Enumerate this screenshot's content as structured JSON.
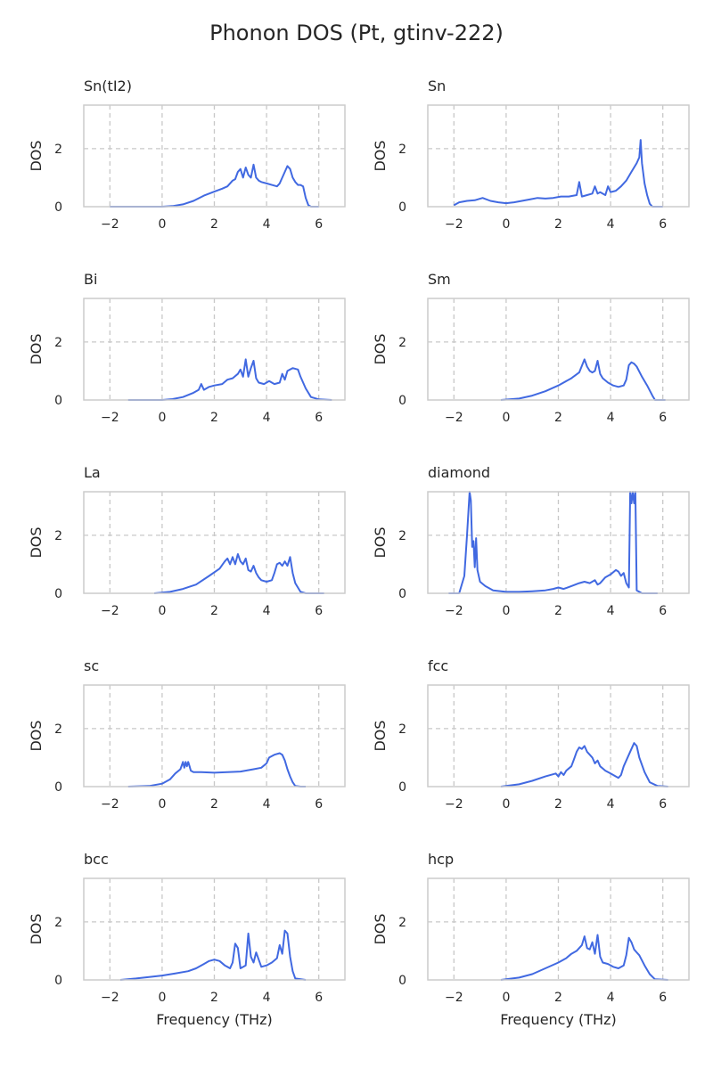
{
  "figure": {
    "title": "Phonon DOS (Pt, gtinv-222)"
  },
  "colors": {
    "line": "#4169e1",
    "grid": "#c8c8c8",
    "frame": "#cccccc",
    "text": "#262626"
  },
  "chart_data": [
    {
      "type": "line",
      "title": "Sn(tI2)",
      "xlabel": "",
      "ylabel": "DOS",
      "xlim": [
        -3,
        7
      ],
      "ylim": [
        0,
        3.5
      ],
      "xticks": [
        -2,
        0,
        2,
        4,
        6
      ],
      "xtick_labels": [
        "−2",
        "0",
        "2",
        "4",
        "6"
      ],
      "yticks": [
        0,
        2
      ],
      "ytick_labels": [
        "0",
        "2"
      ],
      "grid": true,
      "x": [
        -2.0,
        0.0,
        0.4,
        0.8,
        1.2,
        1.6,
        2.0,
        2.3,
        2.5,
        2.7,
        2.8,
        2.9,
        3.0,
        3.1,
        3.2,
        3.3,
        3.4,
        3.5,
        3.6,
        3.7,
        3.8,
        4.0,
        4.2,
        4.4,
        4.5,
        4.7,
        4.8,
        4.9,
        5.0,
        5.1,
        5.2,
        5.3,
        5.4,
        5.5,
        5.6,
        5.7,
        6.0
      ],
      "y": [
        0.0,
        0.0,
        0.02,
        0.08,
        0.2,
        0.38,
        0.52,
        0.62,
        0.7,
        0.9,
        0.95,
        1.2,
        1.3,
        1.0,
        1.35,
        1.1,
        1.0,
        1.45,
        1.0,
        0.9,
        0.85,
        0.8,
        0.75,
        0.7,
        0.8,
        1.2,
        1.4,
        1.3,
        1.0,
        0.85,
        0.75,
        0.75,
        0.7,
        0.3,
        0.05,
        0.0,
        0.0
      ]
    },
    {
      "type": "line",
      "title": "Sn",
      "xlabel": "",
      "ylabel": "DOS",
      "xlim": [
        -3,
        7
      ],
      "ylim": [
        0,
        3.5
      ],
      "xticks": [
        -2,
        0,
        2,
        4,
        6
      ],
      "xtick_labels": [
        "−2",
        "0",
        "2",
        "4",
        "6"
      ],
      "yticks": [
        0,
        2
      ],
      "ytick_labels": [
        "0",
        "2"
      ],
      "grid": true,
      "x": [
        -2.0,
        -1.8,
        -1.5,
        -1.2,
        -0.9,
        -0.6,
        -0.3,
        0.0,
        0.3,
        0.6,
        0.9,
        1.2,
        1.5,
        1.8,
        2.1,
        2.4,
        2.7,
        2.8,
        2.9,
        3.1,
        3.3,
        3.4,
        3.5,
        3.6,
        3.8,
        3.9,
        4.0,
        4.2,
        4.4,
        4.6,
        4.8,
        5.0,
        5.1,
        5.15,
        5.2,
        5.3,
        5.4,
        5.5,
        5.6,
        6.0
      ],
      "y": [
        0.05,
        0.15,
        0.2,
        0.22,
        0.3,
        0.2,
        0.15,
        0.12,
        0.15,
        0.2,
        0.25,
        0.3,
        0.28,
        0.3,
        0.35,
        0.35,
        0.4,
        0.85,
        0.35,
        0.4,
        0.45,
        0.7,
        0.45,
        0.5,
        0.4,
        0.7,
        0.5,
        0.55,
        0.7,
        0.9,
        1.2,
        1.5,
        1.7,
        2.3,
        1.5,
        0.8,
        0.4,
        0.1,
        0.0,
        0.0
      ]
    },
    {
      "type": "line",
      "title": "Bi",
      "xlabel": "",
      "ylabel": "DOS",
      "xlim": [
        -3,
        7
      ],
      "ylim": [
        0,
        3.5
      ],
      "xticks": [
        -2,
        0,
        2,
        4,
        6
      ],
      "xtick_labels": [
        "−2",
        "0",
        "2",
        "4",
        "6"
      ],
      "yticks": [
        0,
        2
      ],
      "ytick_labels": [
        "0",
        "2"
      ],
      "grid": true,
      "x": [
        -1.3,
        0.0,
        0.4,
        0.8,
        1.2,
        1.4,
        1.5,
        1.6,
        1.8,
        2.0,
        2.3,
        2.5,
        2.7,
        2.9,
        3.0,
        3.1,
        3.2,
        3.3,
        3.4,
        3.5,
        3.6,
        3.7,
        3.9,
        4.1,
        4.3,
        4.5,
        4.6,
        4.7,
        4.8,
        4.9,
        5.0,
        5.2,
        5.3,
        5.5,
        5.7,
        6.0,
        6.5
      ],
      "y": [
        0.0,
        0.0,
        0.03,
        0.1,
        0.25,
        0.35,
        0.55,
        0.35,
        0.45,
        0.5,
        0.55,
        0.7,
        0.75,
        0.9,
        1.05,
        0.8,
        1.4,
        0.8,
        1.1,
        1.35,
        0.75,
        0.6,
        0.55,
        0.65,
        0.55,
        0.6,
        0.9,
        0.7,
        1.0,
        1.05,
        1.1,
        1.05,
        0.8,
        0.4,
        0.1,
        0.02,
        0.0
      ]
    },
    {
      "type": "line",
      "title": "Sm",
      "xlabel": "",
      "ylabel": "DOS",
      "xlim": [
        -3,
        7
      ],
      "ylim": [
        0,
        3.5
      ],
      "xticks": [
        -2,
        0,
        2,
        4,
        6
      ],
      "xtick_labels": [
        "−2",
        "0",
        "2",
        "4",
        "6"
      ],
      "yticks": [
        0,
        2
      ],
      "ytick_labels": [
        "0",
        "2"
      ],
      "grid": true,
      "x": [
        -0.2,
        0.5,
        1.0,
        1.5,
        2.0,
        2.5,
        2.8,
        3.0,
        3.1,
        3.2,
        3.3,
        3.4,
        3.5,
        3.6,
        3.7,
        3.9,
        4.1,
        4.3,
        4.5,
        4.6,
        4.7,
        4.8,
        4.9,
        5.0,
        5.2,
        5.4,
        5.6,
        5.7,
        6.1
      ],
      "y": [
        0.0,
        0.05,
        0.15,
        0.3,
        0.5,
        0.75,
        0.95,
        1.4,
        1.15,
        1.0,
        0.95,
        1.0,
        1.35,
        0.9,
        0.75,
        0.6,
        0.5,
        0.45,
        0.5,
        0.7,
        1.2,
        1.3,
        1.25,
        1.15,
        0.8,
        0.5,
        0.15,
        0.0,
        0.0
      ]
    },
    {
      "type": "line",
      "title": "La",
      "xlabel": "",
      "ylabel": "DOS",
      "xlim": [
        -3,
        7
      ],
      "ylim": [
        0,
        3.5
      ],
      "xticks": [
        -2,
        0,
        2,
        4,
        6
      ],
      "xtick_labels": [
        "−2",
        "0",
        "2",
        "4",
        "6"
      ],
      "yticks": [
        0,
        2
      ],
      "ytick_labels": [
        "0",
        "2"
      ],
      "grid": true,
      "x": [
        -0.3,
        0.3,
        0.8,
        1.3,
        1.8,
        2.2,
        2.4,
        2.5,
        2.6,
        2.7,
        2.8,
        2.9,
        3.0,
        3.1,
        3.2,
        3.3,
        3.4,
        3.5,
        3.6,
        3.7,
        3.8,
        4.0,
        4.2,
        4.3,
        4.4,
        4.5,
        4.6,
        4.7,
        4.8,
        4.9,
        5.0,
        5.1,
        5.3,
        5.5,
        6.2
      ],
      "y": [
        0.0,
        0.05,
        0.15,
        0.3,
        0.6,
        0.85,
        1.1,
        1.2,
        1.0,
        1.25,
        1.0,
        1.35,
        1.1,
        1.0,
        1.2,
        0.8,
        0.75,
        0.95,
        0.7,
        0.55,
        0.45,
        0.4,
        0.45,
        0.7,
        1.0,
        1.05,
        0.95,
        1.1,
        0.95,
        1.25,
        0.7,
        0.35,
        0.05,
        0.0,
        0.0
      ]
    },
    {
      "type": "line",
      "title": "diamond",
      "xlabel": "",
      "ylabel": "DOS",
      "xlim": [
        -3,
        7
      ],
      "ylim": [
        0,
        3.5
      ],
      "xticks": [
        -2,
        0,
        2,
        4,
        6
      ],
      "xtick_labels": [
        "−2",
        "0",
        "2",
        "4",
        "6"
      ],
      "yticks": [
        0,
        2
      ],
      "ytick_labels": [
        "0",
        "2"
      ],
      "grid": true,
      "x": [
        -2.2,
        -1.8,
        -1.6,
        -1.5,
        -1.4,
        -1.35,
        -1.3,
        -1.25,
        -1.2,
        -1.15,
        -1.1,
        -1.0,
        -0.8,
        -0.5,
        0.0,
        0.5,
        1.0,
        1.5,
        1.8,
        2.0,
        2.2,
        2.5,
        2.8,
        3.0,
        3.2,
        3.4,
        3.5,
        3.6,
        3.8,
        4.0,
        4.2,
        4.3,
        4.4,
        4.5,
        4.6,
        4.7,
        4.75,
        4.8,
        4.85,
        4.9,
        4.95,
        5.0,
        5.2,
        5.5,
        5.8
      ],
      "y": [
        0.0,
        0.0,
        0.6,
        2.0,
        3.5,
        3.2,
        1.6,
        1.8,
        0.9,
        1.9,
        0.8,
        0.4,
        0.25,
        0.1,
        0.05,
        0.05,
        0.07,
        0.1,
        0.15,
        0.2,
        0.15,
        0.25,
        0.35,
        0.4,
        0.35,
        0.45,
        0.3,
        0.35,
        0.55,
        0.65,
        0.8,
        0.75,
        0.6,
        0.7,
        0.35,
        0.2,
        3.5,
        3.1,
        3.5,
        3.1,
        3.5,
        0.1,
        0.0,
        0.0,
        0.0
      ]
    },
    {
      "type": "line",
      "title": "sc",
      "xlabel": "",
      "ylabel": "DOS",
      "xlim": [
        -3,
        7
      ],
      "ylim": [
        0,
        3.5
      ],
      "xticks": [
        -2,
        0,
        2,
        4,
        6
      ],
      "xtick_labels": [
        "−2",
        "0",
        "2",
        "4",
        "6"
      ],
      "yticks": [
        0,
        2
      ],
      "ytick_labels": [
        "0",
        "2"
      ],
      "grid": true,
      "x": [
        -1.3,
        -0.5,
        0.0,
        0.3,
        0.5,
        0.7,
        0.8,
        0.85,
        0.9,
        0.95,
        1.0,
        1.05,
        1.1,
        1.2,
        1.5,
        2.0,
        2.5,
        3.0,
        3.5,
        3.8,
        4.0,
        4.1,
        4.2,
        4.3,
        4.5,
        4.6,
        4.7,
        4.8,
        4.9,
        5.0,
        5.1,
        5.3,
        5.5
      ],
      "y": [
        0.0,
        0.02,
        0.1,
        0.25,
        0.45,
        0.6,
        0.85,
        0.65,
        0.85,
        0.7,
        0.85,
        0.7,
        0.55,
        0.5,
        0.5,
        0.48,
        0.5,
        0.52,
        0.6,
        0.65,
        0.8,
        1.0,
        1.05,
        1.1,
        1.15,
        1.1,
        0.9,
        0.6,
        0.35,
        0.15,
        0.02,
        0.0,
        0.0
      ]
    },
    {
      "type": "line",
      "title": "fcc",
      "xlabel": "",
      "ylabel": "DOS",
      "xlim": [
        -3,
        7
      ],
      "ylim": [
        0,
        3.5
      ],
      "xticks": [
        -2,
        0,
        2,
        4,
        6
      ],
      "xtick_labels": [
        "−2",
        "0",
        "2",
        "4",
        "6"
      ],
      "yticks": [
        0,
        2
      ],
      "ytick_labels": [
        "0",
        "2"
      ],
      "grid": true,
      "x": [
        -0.2,
        0.5,
        1.0,
        1.5,
        1.9,
        2.0,
        2.1,
        2.2,
        2.3,
        2.5,
        2.6,
        2.7,
        2.8,
        2.9,
        3.0,
        3.1,
        3.2,
        3.3,
        3.4,
        3.5,
        3.6,
        3.8,
        4.0,
        4.2,
        4.3,
        4.4,
        4.5,
        4.7,
        4.8,
        4.9,
        5.0,
        5.1,
        5.3,
        5.5,
        5.8,
        6.2
      ],
      "y": [
        0.0,
        0.08,
        0.2,
        0.35,
        0.45,
        0.35,
        0.5,
        0.4,
        0.55,
        0.7,
        0.95,
        1.2,
        1.35,
        1.3,
        1.4,
        1.2,
        1.1,
        1.0,
        0.8,
        0.9,
        0.7,
        0.55,
        0.45,
        0.35,
        0.3,
        0.4,
        0.7,
        1.1,
        1.3,
        1.5,
        1.4,
        1.0,
        0.5,
        0.15,
        0.02,
        0.0
      ]
    },
    {
      "type": "line",
      "title": "bcc",
      "xlabel": "Frequency (THz)",
      "ylabel": "DOS",
      "xlim": [
        -3,
        7
      ],
      "ylim": [
        0,
        3.5
      ],
      "xticks": [
        -2,
        0,
        2,
        4,
        6
      ],
      "xtick_labels": [
        "−2",
        "0",
        "2",
        "4",
        "6"
      ],
      "yticks": [
        0,
        2
      ],
      "ytick_labels": [
        "0",
        "2"
      ],
      "grid": true,
      "x": [
        -1.6,
        -1.0,
        -0.5,
        0.0,
        0.5,
        1.0,
        1.3,
        1.6,
        1.8,
        2.0,
        2.2,
        2.4,
        2.6,
        2.7,
        2.8,
        2.9,
        3.0,
        3.2,
        3.3,
        3.4,
        3.5,
        3.6,
        3.7,
        3.8,
        4.0,
        4.2,
        4.4,
        4.5,
        4.6,
        4.7,
        4.8,
        4.9,
        5.0,
        5.1,
        5.5
      ],
      "y": [
        0.0,
        0.05,
        0.1,
        0.15,
        0.22,
        0.3,
        0.4,
        0.55,
        0.65,
        0.7,
        0.65,
        0.5,
        0.4,
        0.6,
        1.25,
        1.1,
        0.4,
        0.5,
        1.6,
        0.8,
        0.6,
        0.95,
        0.7,
        0.45,
        0.5,
        0.6,
        0.75,
        1.2,
        0.9,
        1.7,
        1.6,
        0.8,
        0.3,
        0.05,
        0.0
      ]
    },
    {
      "type": "line",
      "title": "hcp",
      "xlabel": "Frequency (THz)",
      "ylabel": "DOS",
      "xlim": [
        -3,
        7
      ],
      "ylim": [
        0,
        3.5
      ],
      "xticks": [
        -2,
        0,
        2,
        4,
        6
      ],
      "xtick_labels": [
        "−2",
        "0",
        "2",
        "4",
        "6"
      ],
      "yticks": [
        0,
        2
      ],
      "ytick_labels": [
        "0",
        "2"
      ],
      "grid": true,
      "x": [
        -0.2,
        0.5,
        1.0,
        1.5,
        2.0,
        2.3,
        2.5,
        2.7,
        2.9,
        3.0,
        3.1,
        3.2,
        3.3,
        3.4,
        3.5,
        3.6,
        3.7,
        3.9,
        4.1,
        4.3,
        4.5,
        4.6,
        4.7,
        4.8,
        4.9,
        5.0,
        5.1,
        5.3,
        5.5,
        5.7,
        6.2
      ],
      "y": [
        0.0,
        0.08,
        0.2,
        0.4,
        0.6,
        0.75,
        0.9,
        1.0,
        1.2,
        1.5,
        1.1,
        1.05,
        1.3,
        0.9,
        1.55,
        0.8,
        0.6,
        0.55,
        0.45,
        0.4,
        0.5,
        0.85,
        1.45,
        1.3,
        1.05,
        0.95,
        0.85,
        0.5,
        0.2,
        0.02,
        0.0
      ]
    }
  ]
}
